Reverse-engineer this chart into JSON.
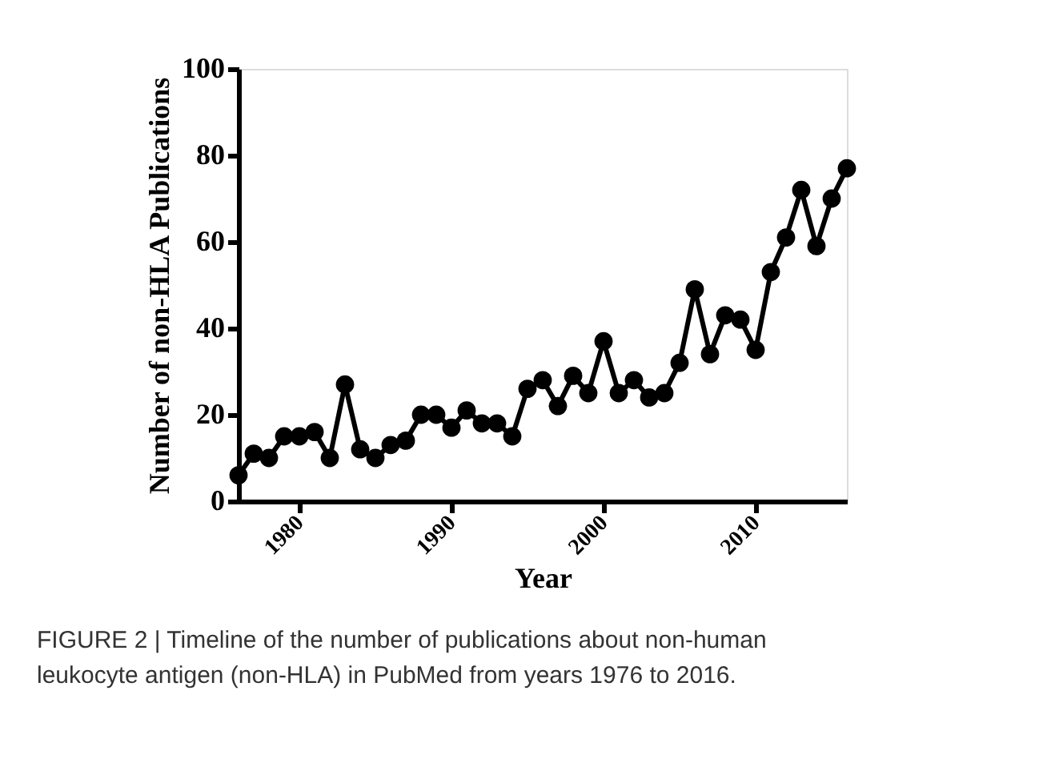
{
  "chart_data": {
    "type": "line",
    "xlabel": "Year",
    "ylabel": "Number of non-HLA Publications",
    "x": [
      1976,
      1977,
      1978,
      1979,
      1980,
      1981,
      1982,
      1983,
      1984,
      1985,
      1986,
      1987,
      1988,
      1989,
      1990,
      1991,
      1992,
      1993,
      1994,
      1995,
      1996,
      1997,
      1998,
      1999,
      2000,
      2001,
      2002,
      2003,
      2004,
      2005,
      2006,
      2007,
      2008,
      2009,
      2010,
      2011,
      2012,
      2013,
      2014,
      2015,
      2016
    ],
    "series": [
      {
        "color": "#000000",
        "values": [
          6,
          11,
          10,
          15,
          15,
          16,
          10,
          27,
          12,
          10,
          13,
          14,
          20,
          20,
          17,
          21,
          18,
          18,
          15,
          26,
          28,
          22,
          29,
          25,
          37,
          25,
          28,
          24,
          25,
          32,
          49,
          34,
          43,
          42,
          35,
          53,
          61,
          72,
          59,
          70,
          77
        ]
      }
    ],
    "xlim": [
      1976,
      2016
    ],
    "xticks": [
      1980,
      1990,
      2000,
      2010
    ],
    "ylim": [
      0,
      100
    ],
    "yticks": [
      0,
      20,
      40,
      60,
      80,
      100
    ],
    "grid": false,
    "marker": "circle",
    "line_style": "solid",
    "annotations": [
      "FIGURE 2 | Timeline of the number of publications about non-human leukocyte antigen (non-HLA) in PubMed from years 1976 to 2016."
    ]
  }
}
